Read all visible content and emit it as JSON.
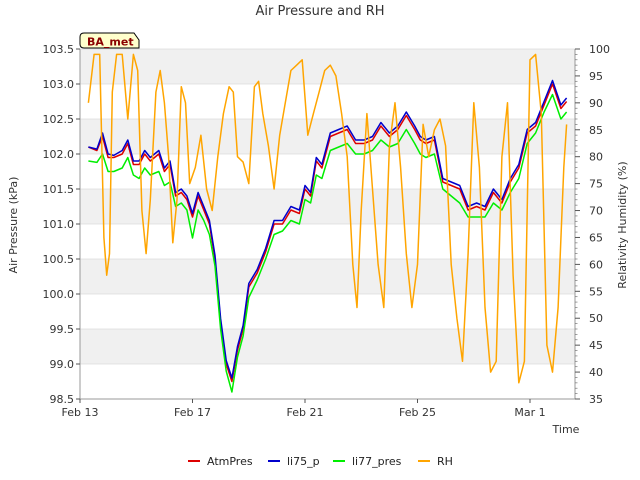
{
  "chart_data": {
    "type": "line",
    "title": "Air Pressure and RH",
    "badge": "BA_met",
    "xlabel": "Time",
    "ylabel": "Air Pressure (kPa)",
    "y2label": "Relativity Humidity (%)",
    "x_ticks": [
      "Feb 13",
      "Feb 17",
      "Feb 21",
      "Feb 25",
      "Mar 1"
    ],
    "x_tick_days": [
      0,
      4,
      8,
      12,
      16
    ],
    "xlim": [
      0,
      17.6
    ],
    "ylim": [
      98.5,
      103.5
    ],
    "y_ticks": [
      "98.5",
      "99.0",
      "99.5",
      "100.0",
      "100.5",
      "101.0",
      "101.5",
      "102.0",
      "102.5",
      "103.0",
      "103.5"
    ],
    "y2lim": [
      35,
      100
    ],
    "y2_ticks": [
      "35",
      "40",
      "45",
      "50",
      "55",
      "60",
      "65",
      "70",
      "75",
      "80",
      "85",
      "90",
      "95",
      "100"
    ],
    "grid": "horizontal bands",
    "legend_position": "bottom",
    "series": [
      {
        "name": "AtmPres",
        "axis": "left",
        "color": "#dd0000",
        "x": [
          0.3,
          0.6,
          0.8,
          1.0,
          1.2,
          1.5,
          1.7,
          1.9,
          2.1,
          2.3,
          2.5,
          2.8,
          3.0,
          3.2,
          3.4,
          3.6,
          3.8,
          4.0,
          4.2,
          4.4,
          4.6,
          4.8,
          5.0,
          5.2,
          5.4,
          5.6,
          5.8,
          6.0,
          6.3,
          6.6,
          6.9,
          7.2,
          7.5,
          7.8,
          8.0,
          8.2,
          8.4,
          8.6,
          8.9,
          9.2,
          9.5,
          9.8,
          10.1,
          10.4,
          10.7,
          11.0,
          11.3,
          11.6,
          11.9,
          12.1,
          12.3,
          12.6,
          12.9,
          13.2,
          13.5,
          13.8,
          14.1,
          14.4,
          14.7,
          15.0,
          15.3,
          15.6,
          15.9,
          16.2,
          16.5,
          16.8,
          17.1,
          17.3
        ],
        "y": [
          102.1,
          102.05,
          102.25,
          101.95,
          101.95,
          102.0,
          102.15,
          101.85,
          101.85,
          102.0,
          101.9,
          102.0,
          101.75,
          101.85,
          101.4,
          101.45,
          101.35,
          101.1,
          101.4,
          101.2,
          101.0,
          100.5,
          99.6,
          99.0,
          98.75,
          99.2,
          99.5,
          100.1,
          100.3,
          100.6,
          101.0,
          101.0,
          101.2,
          101.15,
          101.5,
          101.4,
          101.9,
          101.8,
          102.25,
          102.3,
          102.35,
          102.15,
          102.15,
          102.2,
          102.4,
          102.25,
          102.35,
          102.55,
          102.35,
          102.2,
          102.15,
          102.2,
          101.6,
          101.55,
          101.5,
          101.2,
          101.25,
          101.2,
          101.45,
          101.3,
          101.6,
          101.8,
          102.3,
          102.4,
          102.7,
          103.0,
          102.65,
          102.75
        ]
      },
      {
        "name": "li75_p",
        "axis": "left",
        "color": "#0000cc",
        "x": [
          0.3,
          0.6,
          0.8,
          1.0,
          1.2,
          1.5,
          1.7,
          1.9,
          2.1,
          2.3,
          2.5,
          2.8,
          3.0,
          3.2,
          3.4,
          3.6,
          3.8,
          4.0,
          4.2,
          4.4,
          4.6,
          4.8,
          5.0,
          5.2,
          5.4,
          5.6,
          5.8,
          6.0,
          6.3,
          6.6,
          6.9,
          7.2,
          7.5,
          7.8,
          8.0,
          8.2,
          8.4,
          8.6,
          8.9,
          9.2,
          9.5,
          9.8,
          10.1,
          10.4,
          10.7,
          11.0,
          11.3,
          11.6,
          11.9,
          12.1,
          12.3,
          12.6,
          12.9,
          13.2,
          13.5,
          13.8,
          14.1,
          14.4,
          14.7,
          15.0,
          15.3,
          15.6,
          15.9,
          16.2,
          16.5,
          16.8,
          17.1,
          17.3
        ],
        "y": [
          102.1,
          102.07,
          102.3,
          102.0,
          101.98,
          102.05,
          102.2,
          101.9,
          101.9,
          102.05,
          101.95,
          102.05,
          101.8,
          101.9,
          101.45,
          101.5,
          101.4,
          101.15,
          101.45,
          101.25,
          101.05,
          100.55,
          99.65,
          99.05,
          98.8,
          99.25,
          99.55,
          100.15,
          100.35,
          100.65,
          101.05,
          101.05,
          101.25,
          101.2,
          101.55,
          101.45,
          101.95,
          101.85,
          102.3,
          102.35,
          102.4,
          102.2,
          102.2,
          102.25,
          102.45,
          102.3,
          102.4,
          102.6,
          102.4,
          102.25,
          102.2,
          102.25,
          101.65,
          101.6,
          101.55,
          101.25,
          101.3,
          101.25,
          101.5,
          101.35,
          101.65,
          101.85,
          102.35,
          102.45,
          102.75,
          103.05,
          102.7,
          102.8
        ]
      },
      {
        "name": "li77_pres",
        "axis": "left",
        "color": "#00ee00",
        "x": [
          0.3,
          0.6,
          0.8,
          1.0,
          1.2,
          1.5,
          1.7,
          1.9,
          2.1,
          2.3,
          2.5,
          2.8,
          3.0,
          3.2,
          3.4,
          3.6,
          3.8,
          4.0,
          4.2,
          4.4,
          4.6,
          4.8,
          5.0,
          5.2,
          5.4,
          5.6,
          5.8,
          6.0,
          6.3,
          6.6,
          6.9,
          7.2,
          7.5,
          7.8,
          8.0,
          8.2,
          8.4,
          8.6,
          8.9,
          9.2,
          9.5,
          9.8,
          10.1,
          10.4,
          10.7,
          11.0,
          11.3,
          11.6,
          11.9,
          12.1,
          12.3,
          12.6,
          12.9,
          13.2,
          13.5,
          13.8,
          14.1,
          14.4,
          14.7,
          15.0,
          15.3,
          15.6,
          15.9,
          16.2,
          16.5,
          16.8,
          17.1,
          17.3
        ],
        "y": [
          101.9,
          101.88,
          102.0,
          101.75,
          101.75,
          101.8,
          101.95,
          101.7,
          101.65,
          101.8,
          101.7,
          101.75,
          101.55,
          101.6,
          101.25,
          101.3,
          101.2,
          100.8,
          101.2,
          101.05,
          100.85,
          100.4,
          99.5,
          98.9,
          98.6,
          99.1,
          99.4,
          99.95,
          100.2,
          100.5,
          100.85,
          100.9,
          101.05,
          101.0,
          101.35,
          101.3,
          101.7,
          101.65,
          102.05,
          102.1,
          102.15,
          102.0,
          102.0,
          102.05,
          102.2,
          102.1,
          102.15,
          102.35,
          102.15,
          102.0,
          101.95,
          102.0,
          101.5,
          101.4,
          101.3,
          101.1,
          101.1,
          101.1,
          101.3,
          101.2,
          101.45,
          101.65,
          102.15,
          102.3,
          102.6,
          102.85,
          102.5,
          102.6
        ]
      },
      {
        "name": "RH",
        "axis": "right",
        "color": "#ffa500",
        "x": [
          0.3,
          0.5,
          0.7,
          0.85,
          0.95,
          1.05,
          1.15,
          1.3,
          1.5,
          1.7,
          1.9,
          2.05,
          2.2,
          2.35,
          2.5,
          2.7,
          2.85,
          3.0,
          3.15,
          3.3,
          3.45,
          3.6,
          3.75,
          3.9,
          4.1,
          4.3,
          4.5,
          4.7,
          4.9,
          5.1,
          5.3,
          5.45,
          5.6,
          5.8,
          6.0,
          6.2,
          6.35,
          6.5,
          6.7,
          6.9,
          7.1,
          7.3,
          7.5,
          7.7,
          7.9,
          8.1,
          8.3,
          8.5,
          8.7,
          8.9,
          9.1,
          9.3,
          9.5,
          9.7,
          9.85,
          10.0,
          10.2,
          10.4,
          10.6,
          10.8,
          11.0,
          11.2,
          11.4,
          11.6,
          11.8,
          12.0,
          12.2,
          12.4,
          12.6,
          12.8,
          13.0,
          13.2,
          13.4,
          13.6,
          13.8,
          14.0,
          14.2,
          14.4,
          14.6,
          14.8,
          15.0,
          15.2,
          15.4,
          15.6,
          15.8,
          16.0,
          16.2,
          16.4,
          16.6,
          16.8,
          17.0,
          17.2,
          17.3
        ],
        "y": [
          90,
          99,
          99,
          65,
          58,
          62,
          92,
          99,
          99,
          87,
          99,
          96,
          70,
          62,
          72,
          92,
          96,
          90,
          80,
          64,
          72,
          93,
          90,
          75,
          78,
          84,
          74,
          70,
          80,
          88,
          93,
          92,
          80,
          79,
          75,
          93,
          94,
          88,
          82,
          74,
          84,
          90,
          96,
          97,
          98,
          84,
          88,
          92,
          96,
          97,
          95,
          88,
          80,
          60,
          52,
          70,
          88,
          74,
          60,
          52,
          82,
          90,
          78,
          62,
          52,
          60,
          86,
          80,
          85,
          87,
          82,
          60,
          50,
          42,
          62,
          90,
          78,
          52,
          40,
          42,
          80,
          90,
          58,
          38,
          42,
          98,
          99,
          88,
          45,
          40,
          52,
          78,
          86
        ]
      }
    ]
  }
}
